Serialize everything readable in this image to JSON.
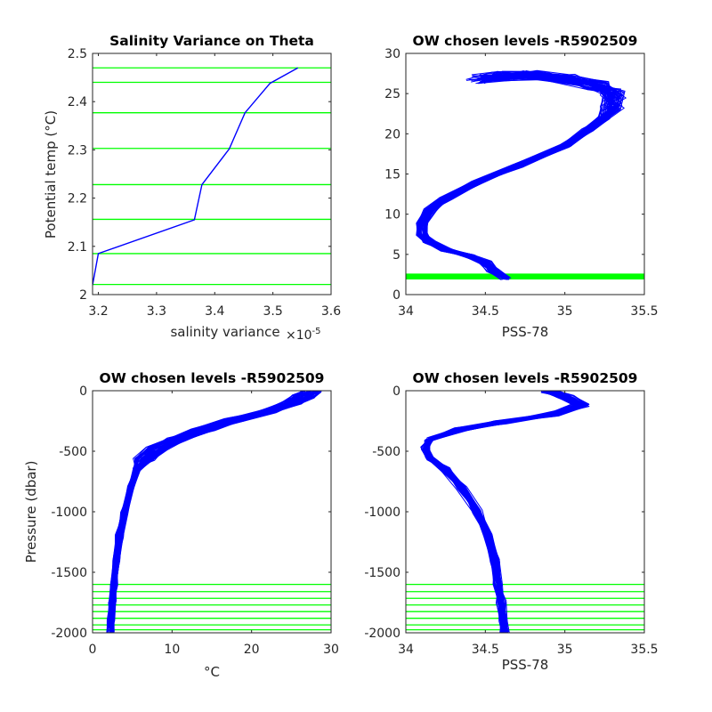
{
  "figure": {
    "background": "#ffffff"
  },
  "chart_data": [
    {
      "id": "variance",
      "type": "line",
      "title": "Salinity Variance on Theta",
      "xlabel": "salinity variance",
      "x_exponent": "×10",
      "x_exponent_power": "-5",
      "ylabel": "Potential temp (°C)",
      "xlim": [
        3.19,
        3.6
      ],
      "ylim": [
        2.0,
        2.5
      ],
      "xticks": [
        3.2,
        3.3,
        3.4,
        3.5,
        3.6
      ],
      "xtick_labels": [
        "3.2",
        "3.3",
        "3.4",
        "3.5",
        "3.6"
      ],
      "yticks": [
        2.0,
        2.1,
        2.2,
        2.3,
        2.4,
        2.5
      ],
      "ytick_labels": [
        "2",
        "2.1",
        "2.2",
        "2.3",
        "2.4",
        "2.5"
      ],
      "series": [
        {
          "color": "#0000ff",
          "x": [
            3.19,
            3.2,
            3.365,
            3.378,
            3.425,
            3.452,
            3.495,
            3.543
          ],
          "y": [
            2.02,
            2.085,
            2.155,
            2.228,
            2.302,
            2.377,
            2.438,
            2.47
          ]
        }
      ],
      "hlines": {
        "color": "#00ff00",
        "values": [
          2.021,
          2.085,
          2.156,
          2.228,
          2.303,
          2.377,
          2.44,
          2.47
        ]
      }
    },
    {
      "id": "theta_salinity",
      "type": "line",
      "title": "OW chosen levels -R5902509",
      "xlabel": "PSS-78",
      "ylabel": "",
      "xlim": [
        34,
        35.5
      ],
      "ylim": [
        0,
        30
      ],
      "xticks": [
        34,
        34.5,
        35,
        35.5
      ],
      "xtick_labels": [
        "34",
        "34.5",
        "35",
        "35.5"
      ],
      "yticks": [
        0,
        5,
        10,
        15,
        20,
        25,
        30
      ],
      "ytick_labels": [
        "0",
        "5",
        "10",
        "15",
        "20",
        "25",
        "30"
      ],
      "series_color": "#0000ff",
      "profile_count": 60,
      "base_profile": {
        "x": [
          34.62,
          34.55,
          34.5,
          34.4,
          34.25,
          34.15,
          34.1,
          34.1,
          34.15,
          34.25,
          34.45,
          34.7,
          35.0,
          35.15,
          35.25,
          35.3,
          35.3,
          35.2,
          35.0,
          34.8,
          34.6,
          34.45
        ],
        "y": [
          2.0,
          3.0,
          4.0,
          4.8,
          5.5,
          6.5,
          7.5,
          9.0,
          10.5,
          12.0,
          14.0,
          16.0,
          18.5,
          20.5,
          22.0,
          23.5,
          25.0,
          26.0,
          26.8,
          27.3,
          27.2,
          26.8
        ]
      },
      "hlines": {
        "color": "#00ff00",
        "values": [
          2.0,
          2.1,
          2.2,
          2.3,
          2.4,
          2.5
        ]
      }
    },
    {
      "id": "pressure_temperature",
      "type": "line",
      "title": "OW chosen levels -R5902509",
      "xlabel": "°C",
      "ylabel": "Pressure (dbar)",
      "xlim": [
        0,
        30
      ],
      "ylim": [
        -2000,
        0
      ],
      "xticks": [
        0,
        10,
        20,
        30
      ],
      "xtick_labels": [
        "0",
        "10",
        "20",
        "30"
      ],
      "yticks": [
        -2000,
        -1500,
        -1000,
        -500,
        0
      ],
      "ytick_labels": [
        "-2000",
        "-1500",
        "-1000",
        "-500",
        "0"
      ],
      "series_color": "#0000ff",
      "profile_count": 60,
      "base_profile": {
        "x": [
          27.5,
          26.5,
          25.0,
          22.0,
          18.0,
          14.0,
          10.5,
          8.0,
          6.5,
          5.5,
          4.8,
          4.0,
          3.4,
          3.0,
          2.7,
          2.5,
          2.3,
          2.2
        ],
        "y": [
          0,
          -50,
          -100,
          -170,
          -240,
          -320,
          -400,
          -480,
          -560,
          -650,
          -800,
          -1000,
          -1200,
          -1400,
          -1600,
          -1750,
          -1900,
          -2000
        ]
      },
      "hlines": {
        "color": "#00ff00",
        "values": [
          -1600,
          -1660,
          -1715,
          -1770,
          -1825,
          -1880,
          -1935,
          -1975
        ]
      }
    },
    {
      "id": "pressure_salinity",
      "type": "line",
      "title": "OW chosen levels -R5902509",
      "xlabel": "PSS-78",
      "ylabel": "",
      "xlim": [
        34,
        35.5
      ],
      "ylim": [
        -2000,
        0
      ],
      "xticks": [
        34,
        34.5,
        35,
        35.5
      ],
      "xtick_labels": [
        "34",
        "34.5",
        "35",
        "35.5"
      ],
      "yticks": [
        -2000,
        -1500,
        -1000,
        -500,
        0
      ],
      "ytick_labels": [
        "-2000",
        "-1500",
        "-1000",
        "-500",
        "0"
      ],
      "series_color": "#0000ff",
      "profile_count": 60,
      "base_profile": {
        "x": [
          34.9,
          35.0,
          35.1,
          34.9,
          34.6,
          34.35,
          34.15,
          34.12,
          34.15,
          34.25,
          34.35,
          34.45,
          34.52,
          34.56,
          34.58,
          34.6,
          34.61,
          34.62
        ],
        "y": [
          0,
          -50,
          -120,
          -200,
          -260,
          -320,
          -400,
          -480,
          -560,
          -650,
          -800,
          -1000,
          -1200,
          -1400,
          -1600,
          -1750,
          -1900,
          -2000
        ]
      },
      "hlines": {
        "color": "#00ff00",
        "values": [
          -1600,
          -1660,
          -1715,
          -1770,
          -1825,
          -1880,
          -1935,
          -1975
        ]
      }
    }
  ]
}
